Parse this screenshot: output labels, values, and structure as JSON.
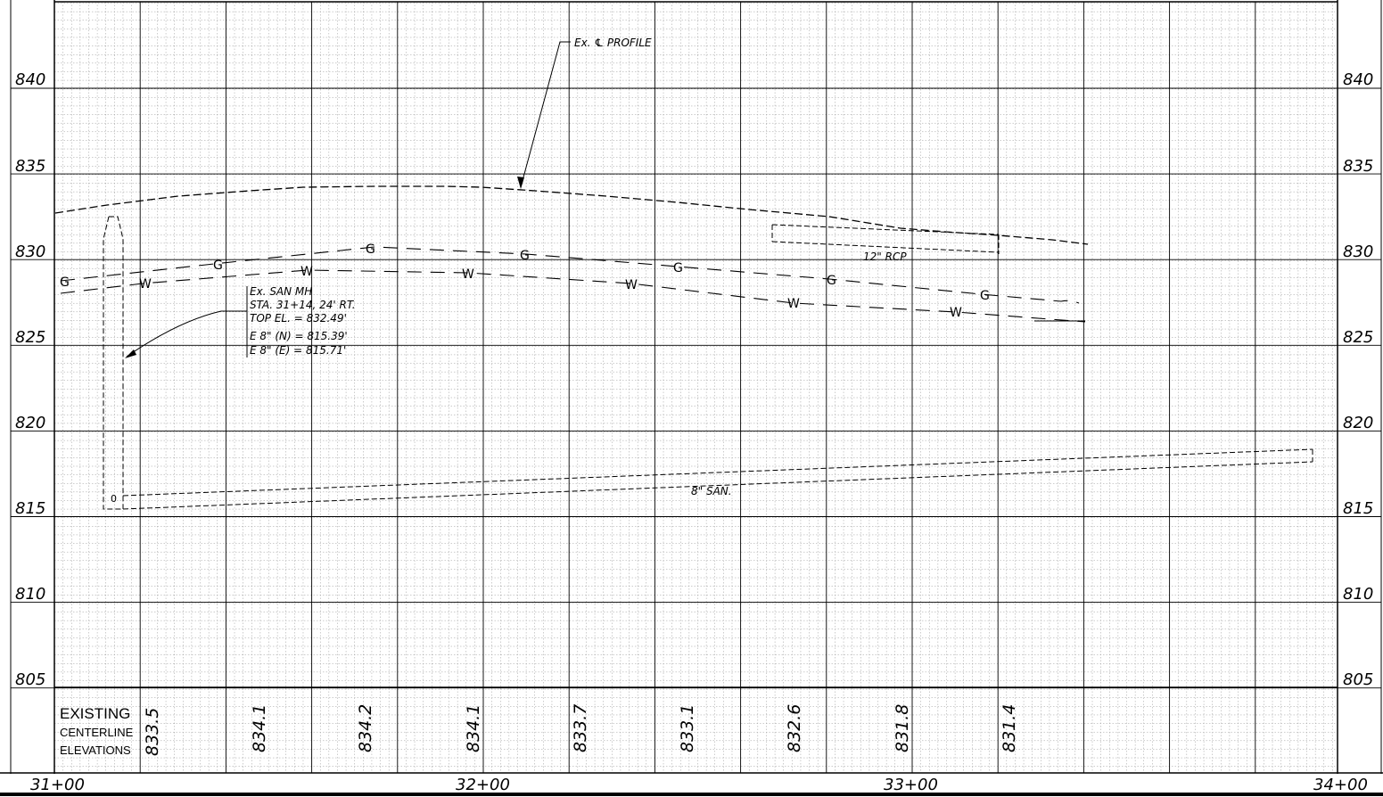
{
  "elevation_labels": [
    "840",
    "835",
    "830",
    "825",
    "820",
    "815",
    "810",
    "805"
  ],
  "station_labels": [
    "31+00",
    "32+00",
    "33+00",
    "34+00"
  ],
  "annotations": {
    "profile_label": "Ex. ℄ PROFILE",
    "manhole_lines": [
      "Ex. SAN MH",
      "STA. 31+14, 24' RT.",
      "TOP EL. = 832.49'",
      "E 8\" (N) = 815.39'",
      "E 8\" (E) = 815.71'"
    ],
    "rcp_label": "12\" RCP",
    "san_label": "8\" SAN."
  },
  "utility_markers": {
    "gas": "G",
    "water": "W"
  },
  "elevation_table": {
    "title_line1": "EXISTING",
    "title_line2": "CENTERLINE",
    "title_line3": "ELEVATIONS",
    "values": [
      "833.5",
      "834.1",
      "834.2",
      "834.1",
      "833.7",
      "833.1",
      "832.6",
      "831.8",
      "831.4"
    ]
  },
  "colors": {
    "major_grid": "#000000",
    "minor_grid": "#9a9a9a",
    "linework": "#000000"
  }
}
